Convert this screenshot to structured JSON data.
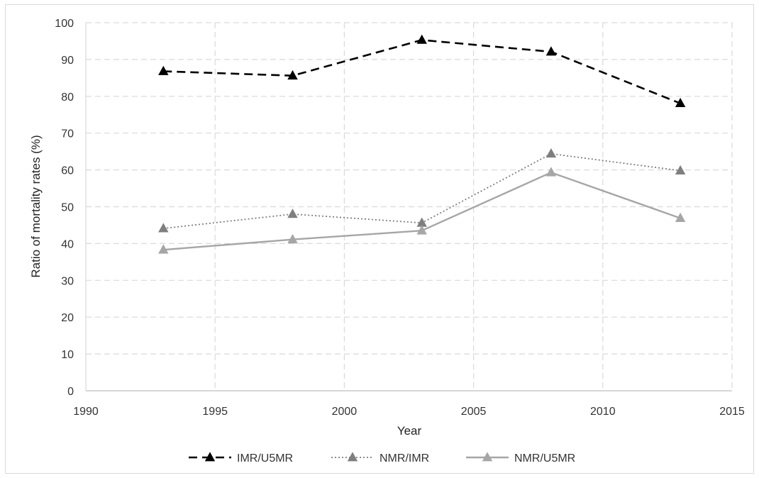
{
  "chart_data": {
    "type": "line",
    "xlabel": "Year",
    "ylabel": "Ratio of mortality rates (%)",
    "xlim": [
      1990,
      2015
    ],
    "ylim": [
      0,
      100
    ],
    "x_ticks": [
      1990,
      1995,
      2000,
      2005,
      2010,
      2015
    ],
    "y_ticks": [
      0,
      10,
      20,
      30,
      40,
      50,
      60,
      70,
      80,
      90,
      100
    ],
    "grid": true,
    "legend_position": "bottom",
    "series": [
      {
        "name": "IMR/U5MR",
        "x": [
          1993,
          1998,
          2003,
          2008,
          2013
        ],
        "values": [
          86.8,
          85.6,
          95.3,
          92.1,
          78.1
        ],
        "color": "#000000",
        "line_style": "dashed",
        "marker": "triangle"
      },
      {
        "name": "NMR/IMR",
        "x": [
          1993,
          1998,
          2003,
          2008,
          2013
        ],
        "values": [
          44.1,
          48.0,
          45.6,
          64.4,
          59.8
        ],
        "color": "#7f7f7f",
        "line_style": "dotted",
        "marker": "triangle"
      },
      {
        "name": "NMR/U5MR",
        "x": [
          1993,
          1998,
          2003,
          2008,
          2013
        ],
        "values": [
          38.3,
          41.1,
          43.5,
          59.3,
          46.9
        ],
        "color": "#a6a6a6",
        "line_style": "solid",
        "marker": "triangle"
      }
    ]
  }
}
